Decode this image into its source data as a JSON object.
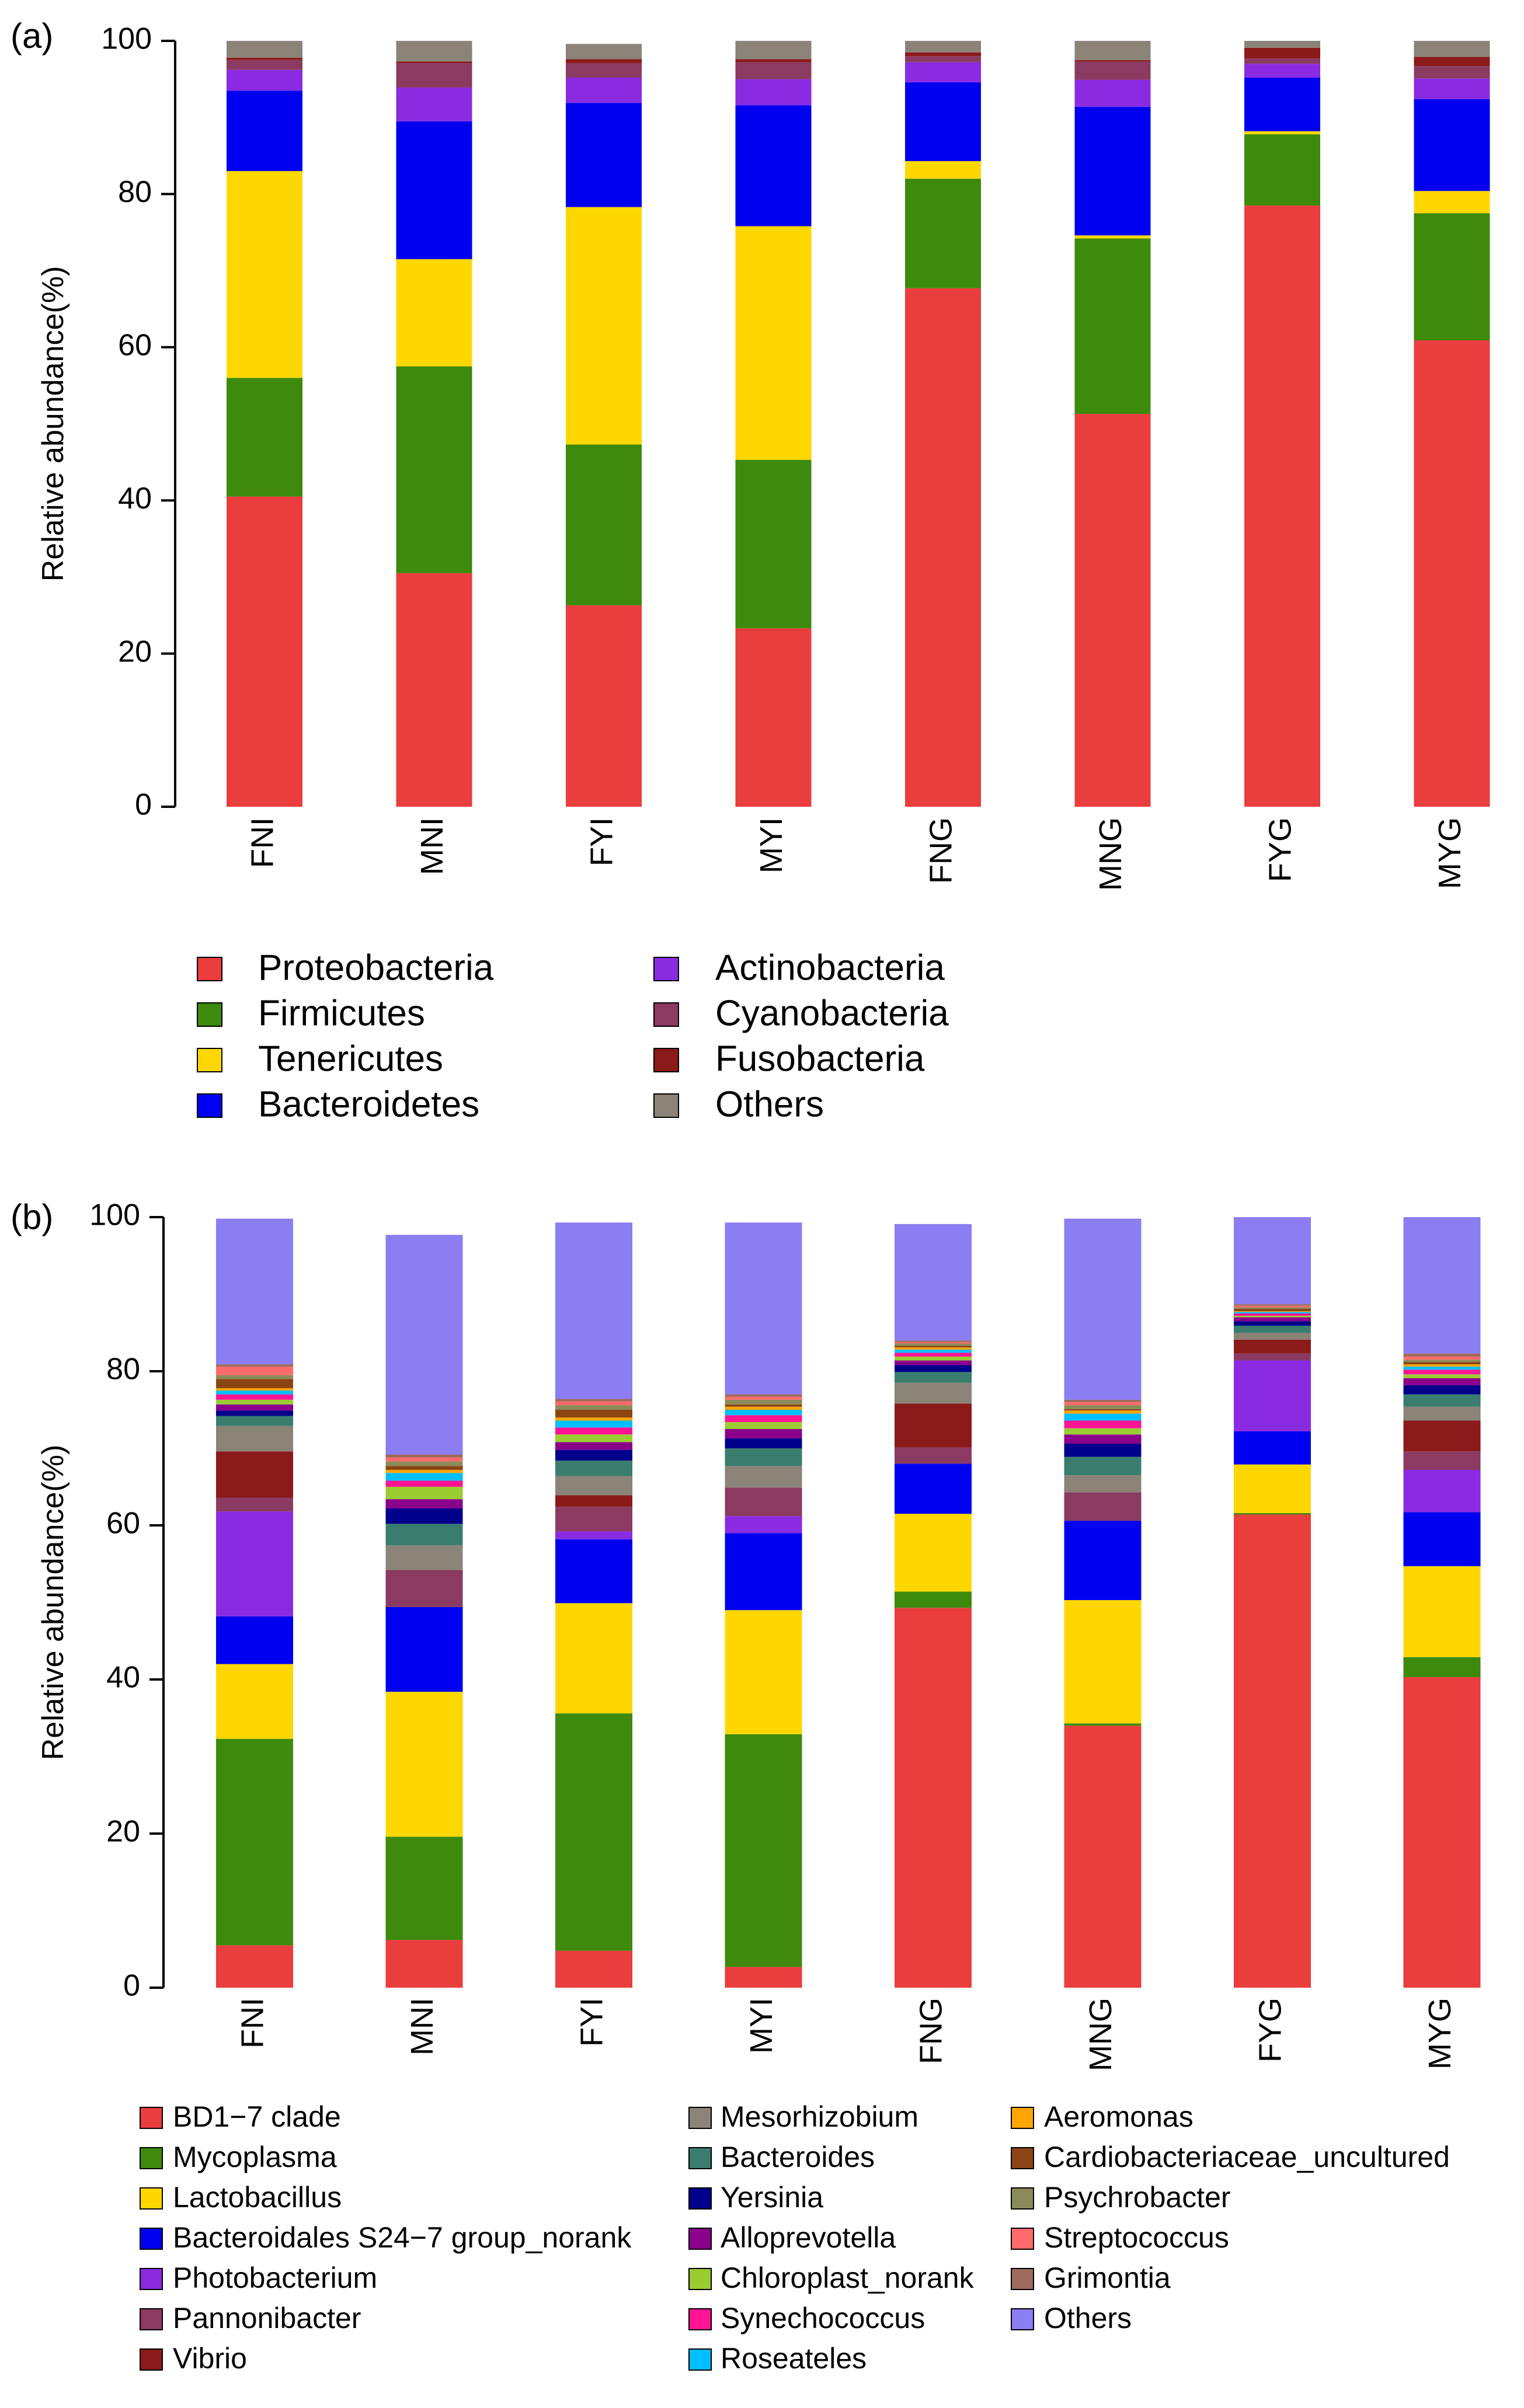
{
  "chart_data": [
    {
      "type": "bar",
      "stacked": true,
      "panel": "(a)",
      "title": "",
      "xlabel": "",
      "ylabel": "Relative abundance(%)",
      "ylim": [
        0,
        100
      ],
      "yticks": [
        "0",
        "20",
        "40",
        "60",
        "80",
        "100"
      ],
      "categories": [
        "FNI",
        "MNI",
        "FYI",
        "MYI",
        "FNG",
        "MNG",
        "FYG",
        "MYG"
      ],
      "series": [
        {
          "name": "Proteobacteria",
          "color": "#ea3d3d",
          "values": [
            40.5,
            30.5,
            26.3,
            23.3,
            67.7,
            51.3,
            78.5,
            60.9
          ]
        },
        {
          "name": "Firmicutes",
          "color": "#3d8a0d",
          "values": [
            15.5,
            27.0,
            21.0,
            22.0,
            14.3,
            22.9,
            9.3,
            16.6
          ]
        },
        {
          "name": "Tenericutes",
          "color": "#ffd700",
          "values": [
            27.0,
            14.0,
            31.0,
            30.5,
            2.3,
            0.4,
            0.4,
            2.9
          ]
        },
        {
          "name": "Bacteroidetes",
          "color": "#0000f0",
          "values": [
            10.5,
            18.0,
            13.6,
            15.8,
            10.3,
            16.8,
            7.0,
            12.0
          ]
        },
        {
          "name": "Actinobacteria",
          "color": "#8a2be2",
          "values": [
            2.7,
            4.4,
            3.3,
            3.4,
            2.6,
            3.5,
            1.8,
            2.7
          ]
        },
        {
          "name": "Cyanobacteria",
          "color": "#8b3a62",
          "values": [
            1.3,
            3.2,
            1.9,
            2.2,
            0.8,
            2.4,
            0.7,
            1.6
          ]
        },
        {
          "name": "Fusobacteria",
          "color": "#8b1a1a",
          "values": [
            0.3,
            0.2,
            0.5,
            0.4,
            0.5,
            0.2,
            1.4,
            1.2
          ]
        },
        {
          "name": "Others",
          "color": "#8b8378",
          "values": [
            2.2,
            2.8,
            2.0,
            2.4,
            1.5,
            2.5,
            0.9,
            2.1
          ]
        }
      ]
    },
    {
      "type": "bar",
      "stacked": true,
      "panel": "(b)",
      "title": "",
      "xlabel": "",
      "ylabel": "Relative abundance(%)",
      "ylim": [
        0,
        100
      ],
      "yticks": [
        "0",
        "20",
        "40",
        "60",
        "80",
        "100"
      ],
      "categories": [
        "FNI",
        "MNI",
        "FYI",
        "MYI",
        "FNG",
        "MNG",
        "FYG",
        "MYG"
      ],
      "series": [
        {
          "name": "BD1−7 clade",
          "color": "#ea3d3d",
          "values": [
            5.5,
            6.2,
            4.8,
            2.7,
            49.3,
            34.0,
            61.4,
            40.3
          ]
        },
        {
          "name": "Mycoplasma",
          "color": "#3d8a0d",
          "values": [
            26.8,
            13.4,
            30.8,
            30.2,
            2.1,
            0.3,
            0.2,
            2.6
          ]
        },
        {
          "name": "Lactobacillus",
          "color": "#ffd700",
          "values": [
            9.7,
            18.8,
            14.3,
            16.1,
            10.1,
            16.0,
            6.3,
            11.8
          ]
        },
        {
          "name": "Bacteroidales S24−7 group_norank",
          "color": "#0000f0",
          "values": [
            6.2,
            11.0,
            8.3,
            10.0,
            6.5,
            10.3,
            4.3,
            7.0
          ]
        },
        {
          "name": "Photobacterium",
          "color": "#8a2be2",
          "values": [
            13.6,
            0.0,
            1.0,
            2.2,
            0.0,
            0.0,
            9.2,
            5.5
          ]
        },
        {
          "name": "Pannonibacter",
          "color": "#8b3a62",
          "values": [
            1.8,
            4.8,
            3.2,
            3.7,
            2.1,
            3.7,
            0.9,
            2.4
          ]
        },
        {
          "name": "Vibrio",
          "color": "#8b1a1a",
          "values": [
            6.0,
            0.0,
            1.5,
            0.0,
            5.7,
            0.0,
            1.8,
            4.0
          ]
        },
        {
          "name": "Mesorhizobium",
          "color": "#8b8378",
          "values": [
            3.3,
            3.2,
            2.5,
            2.8,
            2.7,
            2.2,
            0.9,
            1.8
          ]
        },
        {
          "name": "Bacteroides",
          "color": "#3a7d6e",
          "values": [
            1.3,
            2.8,
            2.0,
            2.3,
            1.4,
            2.4,
            0.9,
            1.6
          ]
        },
        {
          "name": "Yersinia",
          "color": "#00008b",
          "values": [
            0.7,
            2.0,
            1.4,
            1.3,
            0.9,
            1.7,
            0.6,
            1.2
          ]
        },
        {
          "name": "Alloprevotella",
          "color": "#8b008b",
          "values": [
            0.8,
            1.2,
            1.0,
            1.2,
            0.6,
            1.2,
            0.5,
            0.9
          ]
        },
        {
          "name": "Chloroplast_norank",
          "color": "#9acd32",
          "values": [
            0.6,
            1.6,
            1.0,
            0.9,
            0.5,
            0.8,
            0.2,
            0.5
          ]
        },
        {
          "name": "Synechococcus",
          "color": "#ff1493",
          "values": [
            0.7,
            0.8,
            0.9,
            0.9,
            0.5,
            1.0,
            0.3,
            0.6
          ]
        },
        {
          "name": "Roseateles",
          "color": "#00bfff",
          "values": [
            0.5,
            1.0,
            0.9,
            0.7,
            0.4,
            0.9,
            0.2,
            0.4
          ]
        },
        {
          "name": "Aeromonas",
          "color": "#ffa500",
          "values": [
            0.3,
            0.4,
            0.4,
            0.4,
            0.3,
            0.4,
            0.1,
            0.3
          ]
        },
        {
          "name": "Cardiobacteriaceae_uncultured",
          "color": "#8b4513",
          "values": [
            1.2,
            0.5,
            1.0,
            0.3,
            0.2,
            0.2,
            0.3,
            0.3
          ]
        },
        {
          "name": "Psychrobacter",
          "color": "#8b8b5a",
          "values": [
            0.5,
            0.6,
            0.6,
            0.6,
            0.3,
            0.5,
            0.2,
            0.3
          ]
        },
        {
          "name": "Streptococcus",
          "color": "#ff6b6b",
          "values": [
            1.1,
            0.5,
            0.5,
            0.4,
            0.2,
            0.4,
            0.2,
            0.4
          ]
        },
        {
          "name": "Grimontia",
          "color": "#9c6b5c",
          "values": [
            0.3,
            0.4,
            0.3,
            0.3,
            0.2,
            0.3,
            0.2,
            0.4
          ]
        },
        {
          "name": "Others",
          "color": "#8c7df2",
          "values": [
            18.9,
            28.5,
            22.9,
            22.3,
            15.1,
            23.5,
            11.3,
            18.5
          ]
        }
      ]
    }
  ]
}
